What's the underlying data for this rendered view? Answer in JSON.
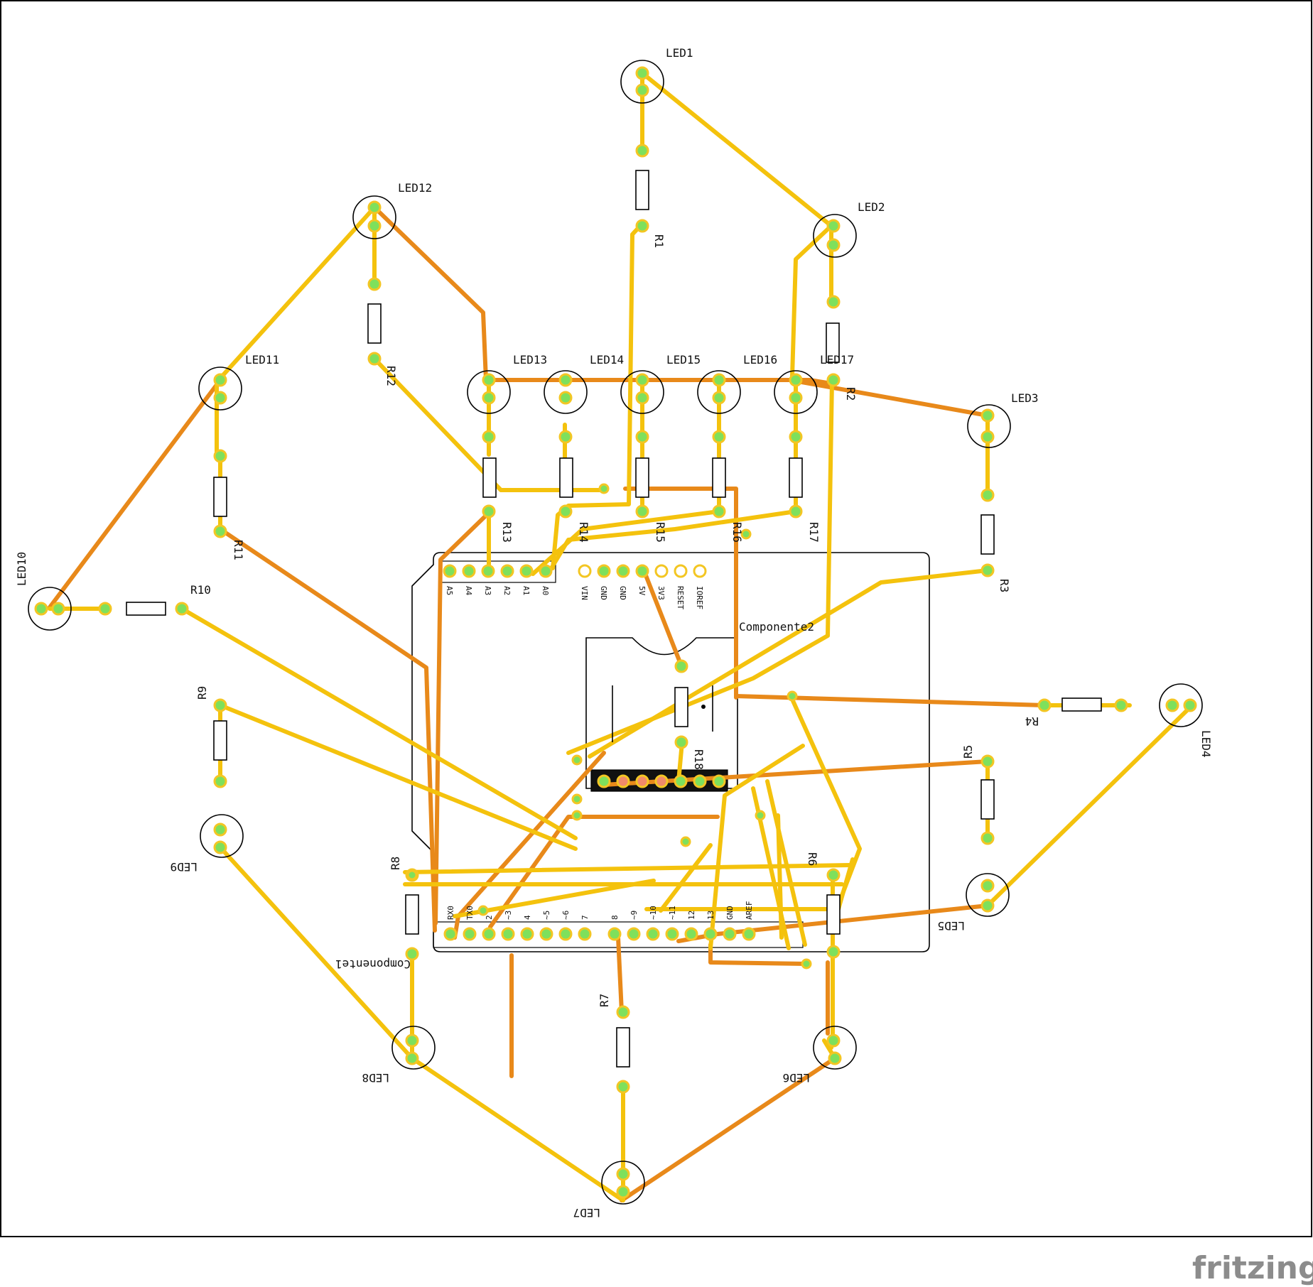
{
  "app": {
    "brand": "fritzing"
  },
  "components": {
    "arduino": "Componente1",
    "relay": "Componente2"
  },
  "leds": {
    "LED1": "LED1",
    "LED2": "LED2",
    "LED3": "LED3",
    "LED4": "LED4",
    "LED5": "LED5",
    "LED6": "LED6",
    "LED7": "LED7",
    "LED8": "LED8",
    "LED9": "LED9",
    "LED10": "LED10",
    "LED11": "LED11",
    "LED12": "LED12",
    "LED13": "LED13",
    "LED14": "LED14",
    "LED15": "LED15",
    "LED16": "LED16",
    "LED17": "LED17"
  },
  "resistors": {
    "R1": "R1",
    "R2": "R2",
    "R3": "R3",
    "R4": "R4",
    "R5": "R5",
    "R6": "R6",
    "R7": "R7",
    "R8": "R8",
    "R9": "R9",
    "R10": "R10",
    "R11": "R11",
    "R12": "R12",
    "R13": "R13",
    "R14": "R14",
    "R15": "R15",
    "R16": "R16",
    "R17": "R17",
    "R18": "R18"
  },
  "header_top_pins": [
    "A5",
    "A4",
    "A3",
    "A2",
    "A1",
    "A0",
    "VIN",
    "GND",
    "GND",
    "5V",
    "3V3",
    "RESET",
    "IOREF"
  ],
  "header_bottom_pins": [
    "RX0",
    "TX0",
    "2",
    "~3",
    "4",
    "~5",
    "~6",
    "7",
    "8",
    "~9",
    "~10",
    "~11",
    "12",
    "13",
    "GND",
    "AREF"
  ],
  "colors": {
    "trace_top": "#f4c20d",
    "trace_bottom": "#e8891a",
    "pad": "#7ee05c",
    "pad_ring": "#f3c623",
    "pad_red": "#f08a6a",
    "outline": "#000000"
  }
}
